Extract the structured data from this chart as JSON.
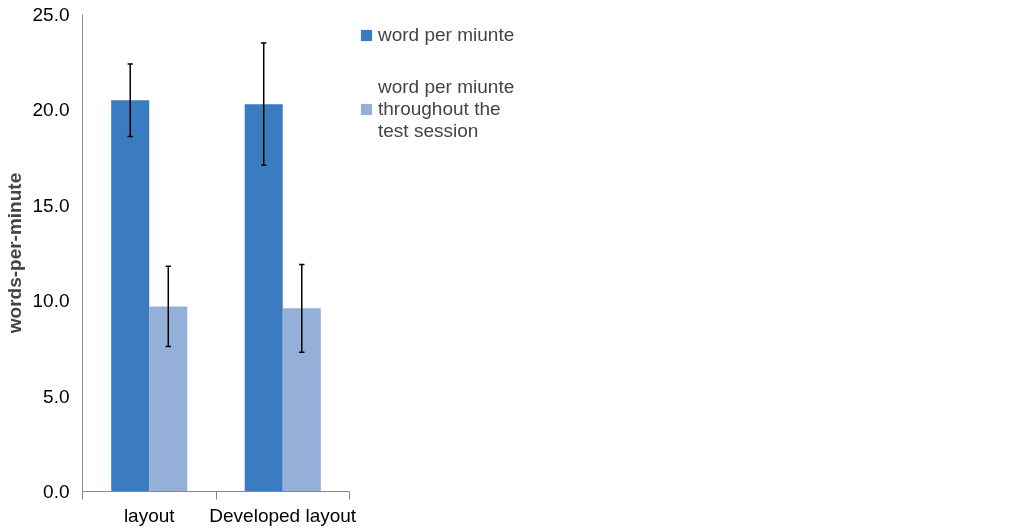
{
  "chart_data": {
    "type": "bar",
    "ylabel": "words-per-minute",
    "categories": [
      "layout",
      "Developed layout"
    ],
    "series": [
      {
        "name": "word per miunte",
        "color": "#3b7bc0",
        "values": [
          20.5,
          20.3
        ],
        "errors": [
          1.9,
          3.2
        ]
      },
      {
        "name": "word per miunte throughout the test session",
        "color": "#94b0d8",
        "values": [
          9.7,
          9.6
        ],
        "errors": [
          2.1,
          2.3
        ]
      }
    ],
    "ylim": [
      0,
      25
    ],
    "yticks": [
      {
        "value": 0,
        "label": "0.0"
      },
      {
        "value": 5,
        "label": "5.0"
      },
      {
        "value": 10,
        "label": "10.0"
      },
      {
        "value": 15,
        "label": "15.0"
      },
      {
        "value": 20,
        "label": "20.0"
      },
      {
        "value": 25,
        "label": "25.0"
      }
    ],
    "grid": false,
    "legend": "right"
  }
}
